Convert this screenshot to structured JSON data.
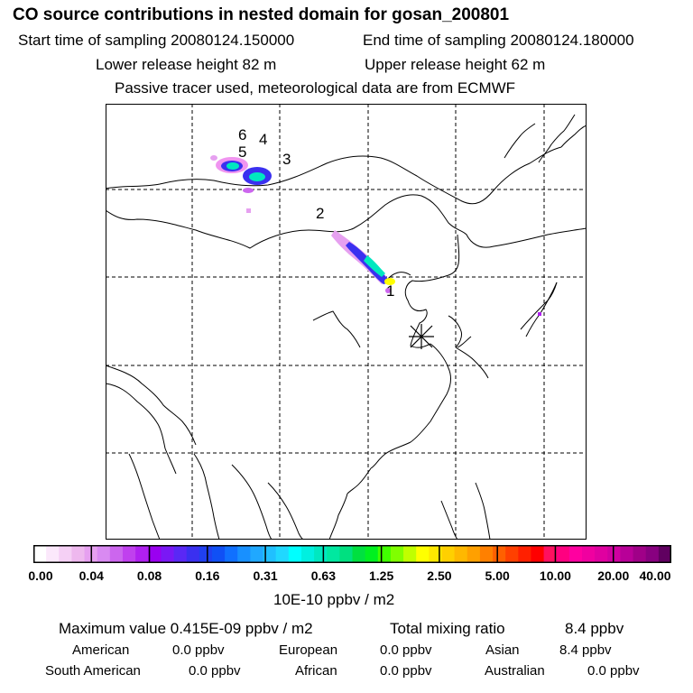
{
  "title": "CO  source contributions in nested domain for gosan_200801",
  "sampling": {
    "start": "Start time of sampling 20080124.150000",
    "end": "End time of sampling 20080124.180000"
  },
  "release": {
    "lower": "Lower release height   82 m",
    "upper": "Upper release height   62 m"
  },
  "tracer_note": "Passive tracer used, meteorological data are from ECMWF",
  "source_labels": [
    "1",
    "2",
    "3",
    "4",
    "5",
    "6"
  ],
  "colorbar": {
    "ticks": [
      "0.00",
      "0.04",
      "0.08",
      "0.16",
      "0.31",
      "0.63",
      "1.25",
      "2.50",
      "5.00",
      "10.00",
      "20.00",
      "40.00"
    ],
    "colors": [
      "#ffffff",
      "#fbe8fb",
      "#f5d0f5",
      "#eeb8ee",
      "#e6a0f0",
      "#d98af2",
      "#cc66ee",
      "#c040ee",
      "#b020f0",
      "#9a00f0",
      "#7a18f5",
      "#5a28f5",
      "#3a30f0",
      "#2040f0",
      "#1050f5",
      "#1070ff",
      "#1890ff",
      "#20a8ff",
      "#20c0ff",
      "#20d8ff",
      "#00ffff",
      "#00f0e0",
      "#00e8c0",
      "#00e8a0",
      "#00e080",
      "#00e040",
      "#00f020",
      "#40ff00",
      "#80ff00",
      "#c0ff00",
      "#ffff00",
      "#ffe800",
      "#ffd000",
      "#ffb800",
      "#ffa000",
      "#ff8000",
      "#ff6000",
      "#ff4000",
      "#ff2000",
      "#ff0000",
      "#ff1060",
      "#ff0080",
      "#ff00a0",
      "#f000a0",
      "#e000a0",
      "#d000a0",
      "#b80098",
      "#a00088",
      "#880080",
      "#600060"
    ],
    "unit_label": "10E-10 ppbv / m2"
  },
  "stats": {
    "max_label": "Maximum value  0.415E-09 ppbv / m2",
    "total_label": "Total mixing ratio",
    "total_value": "8.4 ppbv",
    "regions": [
      {
        "name": "American",
        "value": "0.0 ppbv"
      },
      {
        "name": "European",
        "value": "0.0 ppbv"
      },
      {
        "name": "Asian",
        "value": "8.4 ppbv"
      },
      {
        "name": "South American",
        "value": "0.0 ppbv"
      },
      {
        "name": "African",
        "value": "0.0 ppbv"
      },
      {
        "name": "Australian",
        "value": "0.0 ppbv"
      }
    ]
  }
}
